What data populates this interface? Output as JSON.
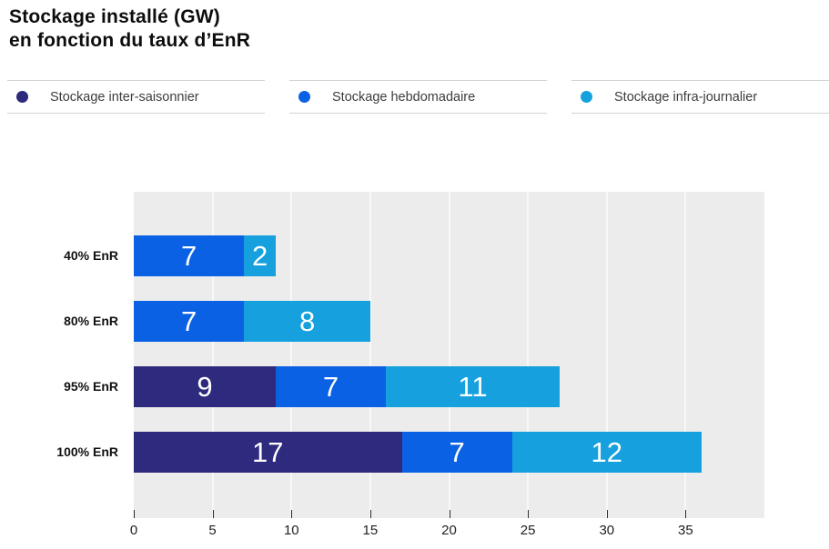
{
  "title": {
    "line1": "Stockage installé (GW)",
    "line2": "en fonction du taux d’EnR"
  },
  "legend": [
    {
      "label": "Stockage inter-saisonnier",
      "color": "#2e2a7d"
    },
    {
      "label": "Stockage hebdomadaire",
      "color": "#0b61e4"
    },
    {
      "label": "Stockage infra-journalier",
      "color": "#16a1de"
    }
  ],
  "chart_data": {
    "type": "bar",
    "orientation": "horizontal",
    "stacked": true,
    "title": "Stockage installé (GW) en fonction du taux d’EnR",
    "categories": [
      "40% EnR",
      "80% EnR",
      "95% EnR",
      "100% EnR"
    ],
    "series": [
      {
        "name": "Stockage inter-saisonnier",
        "color": "#2e2a7d",
        "values": [
          0,
          0,
          9,
          17
        ]
      },
      {
        "name": "Stockage hebdomadaire",
        "color": "#0b61e4",
        "values": [
          7,
          7,
          7,
          7
        ]
      },
      {
        "name": "Stockage infra-journalier",
        "color": "#16a1de",
        "values": [
          2,
          8,
          11,
          12
        ]
      }
    ],
    "totals": [
      9,
      15,
      27,
      36
    ],
    "xlabel": "",
    "ylabel": "",
    "x_ticks": [
      0,
      5,
      10,
      15,
      20,
      25,
      30,
      35
    ],
    "xlim": [
      0,
      40
    ],
    "grid": true,
    "legend_position": "top",
    "plot_background": "#ececec",
    "gridline_color": "#f8f8f8",
    "value_label_color": "#ffffff"
  }
}
